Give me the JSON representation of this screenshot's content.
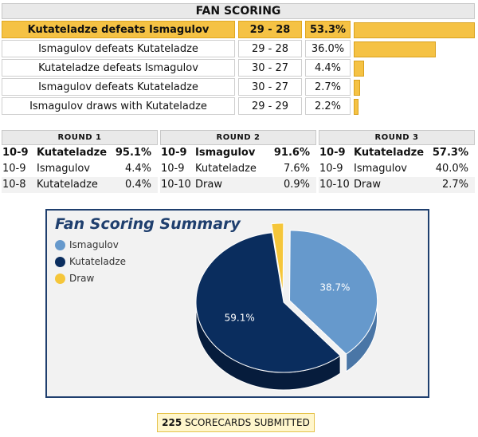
{
  "header": {
    "title": "FAN SCORING"
  },
  "outcomes": [
    {
      "label": "Kutateladze defeats Ismagulov",
      "score": "29 - 28",
      "pct": "53.3%",
      "value": 53.3
    },
    {
      "label": "Ismagulov defeats Kutateladze",
      "score": "29 - 28",
      "pct": "36.0%",
      "value": 36.0
    },
    {
      "label": "Kutateladze defeats Ismagulov",
      "score": "30 - 27",
      "pct": "4.4%",
      "value": 4.4
    },
    {
      "label": "Ismagulov defeats Kutateladze",
      "score": "30 - 27",
      "pct": "2.7%",
      "value": 2.7
    },
    {
      "label": "Ismagulov draws with Kutateladze",
      "score": "29 - 29",
      "pct": "2.2%",
      "value": 2.2
    }
  ],
  "rounds": [
    {
      "title": "ROUND 1",
      "rows": [
        {
          "score": "10-9",
          "name": "Kutateladze",
          "pct": "95.1%"
        },
        {
          "score": "10-9",
          "name": "Ismagulov",
          "pct": "4.4%"
        },
        {
          "score": "10-8",
          "name": "Kutateladze",
          "pct": "0.4%"
        }
      ]
    },
    {
      "title": "ROUND 2",
      "rows": [
        {
          "score": "10-9",
          "name": "Ismagulov",
          "pct": "91.6%"
        },
        {
          "score": "10-9",
          "name": "Kutateladze",
          "pct": "7.6%"
        },
        {
          "score": "10-10",
          "name": "Draw",
          "pct": "0.9%"
        }
      ]
    },
    {
      "title": "ROUND 3",
      "rows": [
        {
          "score": "10-9",
          "name": "Kutateladze",
          "pct": "57.3%"
        },
        {
          "score": "10-9",
          "name": "Ismagulov",
          "pct": "40.0%"
        },
        {
          "score": "10-10",
          "name": "Draw",
          "pct": "2.7%"
        }
      ]
    }
  ],
  "chart_data": {
    "type": "pie",
    "title": "Fan Scoring Summary",
    "legend": [
      {
        "name": "Ismagulov",
        "color": "#6699cc"
      },
      {
        "name": "Kutateladze",
        "color": "#0a2d5e"
      },
      {
        "name": "Draw",
        "color": "#f5c63a"
      }
    ],
    "series": [
      {
        "name": "Ismagulov",
        "value": 38.7,
        "label": "38.7%"
      },
      {
        "name": "Kutateladze",
        "value": 59.1,
        "label": "59.1%"
      },
      {
        "name": "Draw",
        "value": 2.2,
        "label": ""
      }
    ]
  },
  "footer": {
    "count": "225",
    "text": "SCORECARDS SUBMITTED"
  }
}
